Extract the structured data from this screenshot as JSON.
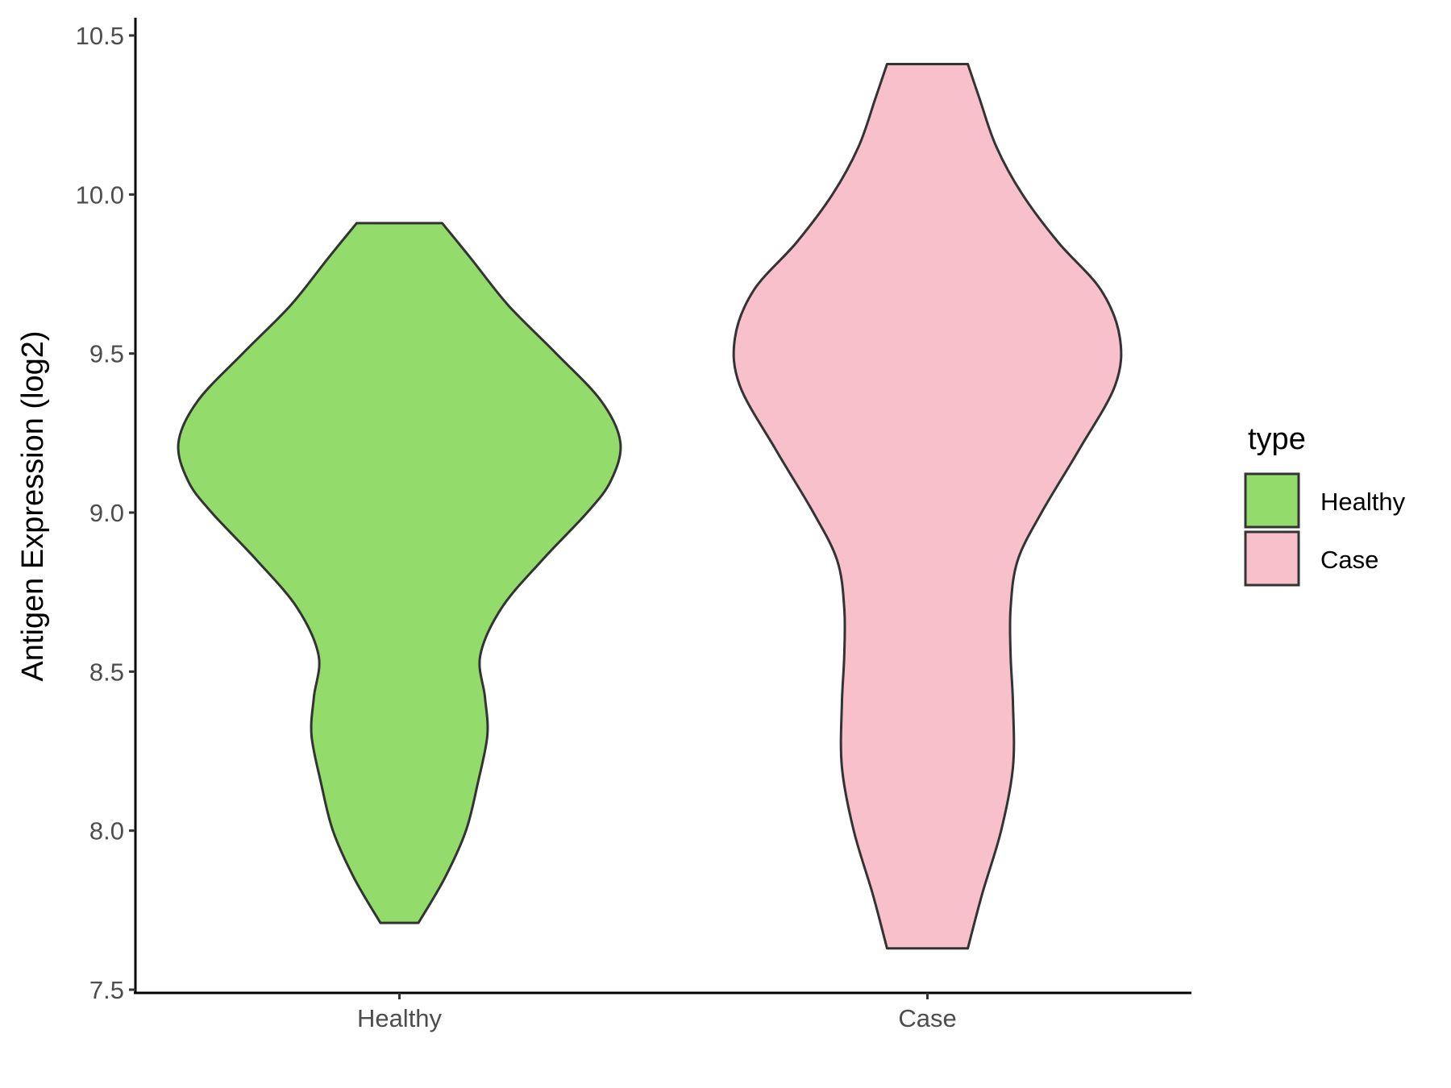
{
  "chart_data": {
    "type": "violin",
    "title": "",
    "xlabel": "",
    "ylabel": "Antigen Expression (log2)",
    "ylim": [
      7.5,
      10.5
    ],
    "yticks": [
      "7.5",
      "8.0",
      "8.5",
      "9.0",
      "9.5",
      "10.0",
      "10.5"
    ],
    "categories": [
      "Healthy",
      "Case"
    ],
    "grid": false,
    "legend": {
      "title": "type",
      "placement": "right",
      "entries": [
        {
          "label": "Healthy",
          "color": "#93DC6B"
        },
        {
          "label": "Case",
          "color": "#F7C0CB"
        }
      ]
    },
    "series": [
      {
        "category": "Healthy",
        "fill": "#93DC6B",
        "min": 7.71,
        "max": 9.91,
        "density_profile": {
          "y": [
            7.71,
            7.85,
            8.0,
            8.15,
            8.3,
            8.42,
            8.55,
            8.7,
            8.85,
            9.0,
            9.1,
            9.22,
            9.35,
            9.5,
            9.65,
            9.8,
            9.91
          ],
          "half_width": [
            0.08,
            0.19,
            0.28,
            0.33,
            0.37,
            0.36,
            0.34,
            0.43,
            0.6,
            0.79,
            0.89,
            0.93,
            0.85,
            0.66,
            0.46,
            0.3,
            0.18
          ]
        }
      },
      {
        "category": "Case",
        "fill": "#F7C0CB",
        "min": 7.63,
        "max": 10.41,
        "density_profile": {
          "y": [
            7.63,
            7.8,
            8.0,
            8.2,
            8.4,
            8.55,
            8.7,
            8.85,
            9.0,
            9.2,
            9.4,
            9.55,
            9.7,
            9.85,
            10.0,
            10.15,
            10.3,
            10.41
          ],
          "half_width": [
            0.17,
            0.23,
            0.31,
            0.36,
            0.36,
            0.35,
            0.35,
            0.38,
            0.48,
            0.64,
            0.79,
            0.81,
            0.73,
            0.55,
            0.4,
            0.29,
            0.22,
            0.17
          ]
        }
      }
    ]
  }
}
